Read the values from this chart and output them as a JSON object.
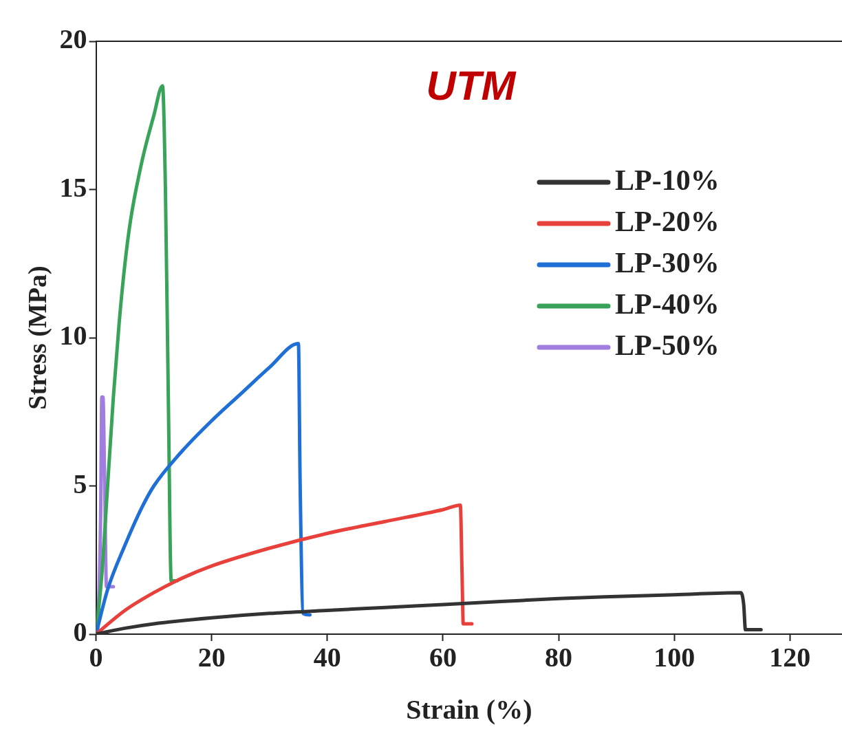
{
  "chart_data": {
    "type": "line",
    "xlabel": "Strain (%)",
    "ylabel": "Stress (MPa)",
    "annotations": [
      "UTM"
    ],
    "xlim": [
      0,
      129
    ],
    "xticks": [
      0,
      20,
      40,
      60,
      80,
      100,
      120
    ],
    "ylim": [
      0,
      20
    ],
    "yticks": [
      0,
      5,
      10,
      15,
      20
    ],
    "grid": false,
    "legend": "top right",
    "marker": "none",
    "line_style": "solid",
    "series": [
      {
        "name": "LP-10%",
        "color": "#333333",
        "x": [
          0,
          5,
          10,
          20,
          30,
          40,
          50,
          60,
          70,
          80,
          90,
          100,
          111.5,
          112,
          112.3,
          115
        ],
        "values": [
          0,
          0.2,
          0.35,
          0.55,
          0.7,
          0.8,
          0.9,
          1.0,
          1.1,
          1.2,
          1.27,
          1.33,
          1.4,
          1.0,
          0.15,
          0.15
        ]
      },
      {
        "name": "LP-20%",
        "color": "#e8403a",
        "x": [
          0,
          5,
          10,
          15,
          20,
          30,
          40,
          50,
          60,
          63,
          63.3,
          63.5,
          65
        ],
        "values": [
          0,
          0.8,
          1.4,
          1.9,
          2.3,
          2.9,
          3.4,
          3.8,
          4.2,
          4.35,
          2,
          0.35,
          0.35
        ]
      },
      {
        "name": "LP-30%",
        "color": "#1f6fd6",
        "x": [
          0,
          2,
          5,
          8,
          10,
          15,
          20,
          25,
          30,
          35,
          35.3,
          35.8,
          37
        ],
        "values": [
          0,
          1.5,
          3,
          4.3,
          5,
          6.2,
          7.2,
          8.1,
          9,
          9.8,
          5,
          0.7,
          0.65
        ]
      },
      {
        "name": "LP-40%",
        "color": "#3aa35a",
        "x": [
          0,
          1,
          2,
          3,
          4,
          5,
          6,
          8,
          10,
          11.5,
          12,
          12.5,
          13,
          14
        ],
        "values": [
          0,
          2,
          5,
          8,
          10.5,
          12.5,
          14,
          16,
          17.5,
          18.5,
          15,
          8,
          1.8,
          1.8
        ]
      },
      {
        "name": "LP-50%",
        "color": "#a07ee0",
        "x": [
          0.3,
          0.8,
          1,
          1.2,
          1.5,
          1.8,
          3
        ],
        "values": [
          0,
          4,
          8,
          8,
          5,
          1.6,
          1.6
        ]
      }
    ]
  }
}
